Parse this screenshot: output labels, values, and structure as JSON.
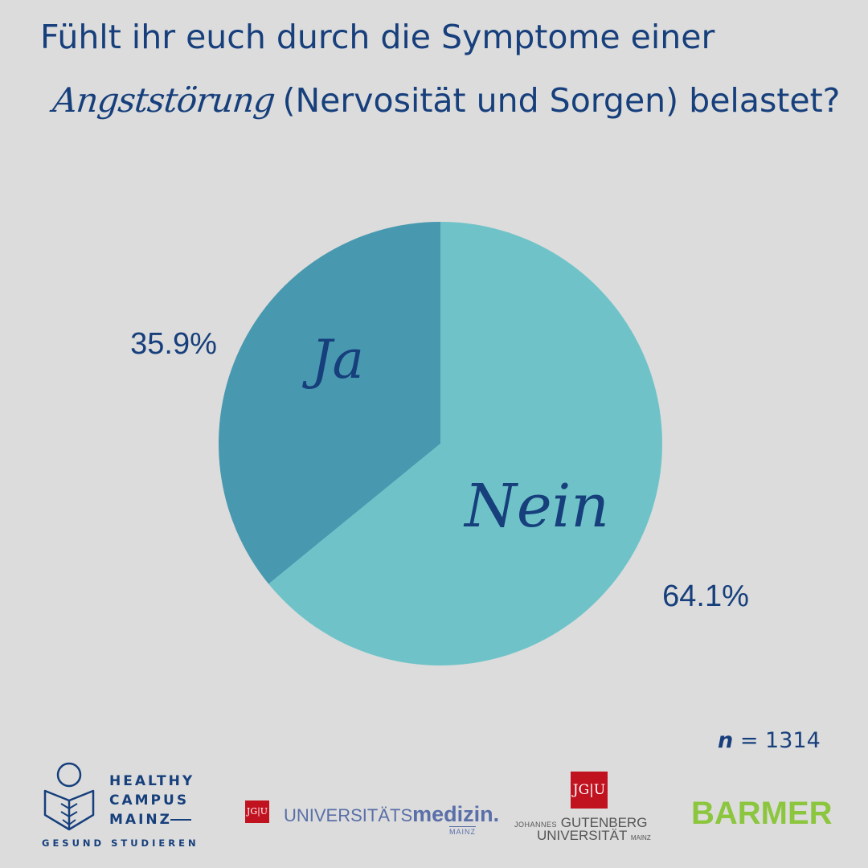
{
  "title": {
    "line1": "Fühlt ihr euch durch die Symptome einer",
    "highlight": "Angststörung",
    "line2_rest": "(Nervosität und Sorgen) belastet?"
  },
  "chart_data": {
    "type": "pie",
    "title": "Fühlt ihr euch durch die Symptome einer Angststörung (Nervosität und Sorgen) belastet?",
    "slices": [
      {
        "label": "Ja",
        "value": 35.9,
        "display": "35.9%",
        "color": "#4899b0"
      },
      {
        "label": "Nein",
        "value": 64.1,
        "display": "64.1%",
        "color": "#6fc3c8"
      }
    ],
    "start_angle_deg": 0,
    "direction": "counterclockwise-from-top for Ja"
  },
  "sample": {
    "symbol": "n",
    "equals": "=",
    "value": "1314"
  },
  "footer": {
    "hcm": {
      "line1": "HEALTHY",
      "line2": "CAMPUS",
      "line3": "MAINZ",
      "sub": "GESUND STUDIEREN"
    },
    "unimedizin": {
      "jgu": "JG|U",
      "text_a": "UNIVERSITÄTS",
      "text_b": "medizin.",
      "mainz": "MAINZ"
    },
    "jgu": {
      "box": "JG|U",
      "small1": "JOHANNES",
      "big1": "GUTENBERG",
      "big2": "UNIVERSITÄT",
      "small2": "MAINZ"
    },
    "barmer": "BARMER"
  },
  "colors": {
    "text": "#163f7c",
    "background": "#dcdcdc",
    "ja": "#4899b0",
    "nein": "#6fc3c8",
    "barmer": "#8cc63f",
    "jgu_red": "#c1121f"
  }
}
